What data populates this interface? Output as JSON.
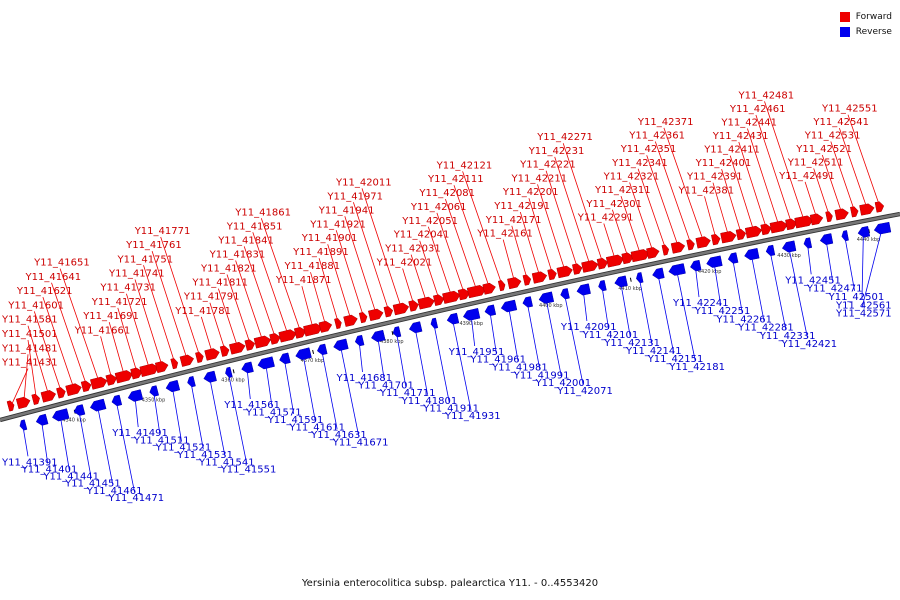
{
  "colors": {
    "forward": "#ee0000",
    "reverse": "#0000ee",
    "backbone": "#777777",
    "backbone_edge": "#333333"
  },
  "legend": [
    {
      "key": "forward",
      "label": "Forward"
    },
    {
      "key": "reverse",
      "label": "Reverse"
    }
  ],
  "caption": "Yersinia enterocolitica subsp. palearctica Y11. - 0..4553420",
  "region_kbp": [
    4335,
    4447
  ],
  "ticks": [
    "4340 kbp",
    "4350 kbp",
    "4360 kbp",
    "4370 kbp",
    "4380 kbp",
    "4390 kbp",
    "4400 kbp",
    "4410 kbp",
    "4420 kbp",
    "4430 kbp",
    "4440 kbp"
  ],
  "genes": [
    {
      "id": "Y11_41391",
      "strand": "-"
    },
    {
      "id": "Y11_41401",
      "strand": "-"
    },
    {
      "id": "Y11_41431",
      "strand": "+"
    },
    {
      "id": "Y11_41441",
      "strand": "-"
    },
    {
      "id": "Y11_41451",
      "strand": "-"
    },
    {
      "id": "Y11_41461",
      "strand": "-"
    },
    {
      "id": "Y11_41471",
      "strand": "-"
    },
    {
      "id": "Y11_41481",
      "strand": "+"
    },
    {
      "id": "Y11_41491",
      "strand": "-"
    },
    {
      "id": "Y11_41501",
      "strand": "+"
    },
    {
      "id": "Y11_41511",
      "strand": "-"
    },
    {
      "id": "Y11_41521",
      "strand": "-"
    },
    {
      "id": "Y11_41531",
      "strand": "-"
    },
    {
      "id": "Y11_41541",
      "strand": "-"
    },
    {
      "id": "Y11_41551",
      "strand": "-"
    },
    {
      "id": "Y11_41561",
      "strand": "-"
    },
    {
      "id": "Y11_41571",
      "strand": "-"
    },
    {
      "id": "Y11_41581",
      "strand": "+"
    },
    {
      "id": "Y11_41591",
      "strand": "-"
    },
    {
      "id": "Y11_41601",
      "strand": "+"
    },
    {
      "id": "Y11_41611",
      "strand": "-"
    },
    {
      "id": "Y11_41621",
      "strand": "+"
    },
    {
      "id": "Y11_41631",
      "strand": "-"
    },
    {
      "id": "Y11_41641",
      "strand": "+"
    },
    {
      "id": "Y11_41651",
      "strand": "+"
    },
    {
      "id": "Y11_41661",
      "strand": "+"
    },
    {
      "id": "Y11_41671",
      "strand": "-"
    },
    {
      "id": "Y11_41681",
      "strand": "-"
    },
    {
      "id": "Y11_41691",
      "strand": "+"
    },
    {
      "id": "Y11_41701",
      "strand": "-"
    },
    {
      "id": "Y11_41711",
      "strand": "-"
    },
    {
      "id": "Y11_41721",
      "strand": "+"
    },
    {
      "id": "Y11_41731",
      "strand": "+"
    },
    {
      "id": "Y11_41741",
      "strand": "+"
    },
    {
      "id": "Y11_41751",
      "strand": "+"
    },
    {
      "id": "Y11_41761",
      "strand": "+"
    },
    {
      "id": "Y11_41771",
      "strand": "+"
    },
    {
      "id": "Y11_41781",
      "strand": "+"
    },
    {
      "id": "Y11_41791",
      "strand": "+"
    },
    {
      "id": "Y11_41801",
      "strand": "-"
    },
    {
      "id": "Y11_41811",
      "strand": "+"
    },
    {
      "id": "Y11_41821",
      "strand": "+"
    },
    {
      "id": "Y11_41831",
      "strand": "+"
    },
    {
      "id": "Y11_41841",
      "strand": "+"
    },
    {
      "id": "Y11_41851",
      "strand": "+"
    },
    {
      "id": "Y11_41861",
      "strand": "+"
    },
    {
      "id": "Y11_41871",
      "strand": "+"
    },
    {
      "id": "Y11_41881",
      "strand": "+"
    },
    {
      "id": "Y11_41891",
      "strand": "+"
    },
    {
      "id": "Y11_41901",
      "strand": "+"
    },
    {
      "id": "Y11_41911",
      "strand": "-"
    },
    {
      "id": "Y11_41921",
      "strand": "+"
    },
    {
      "id": "Y11_41931",
      "strand": "-"
    },
    {
      "id": "Y11_41941",
      "strand": "+"
    },
    {
      "id": "Y11_41951",
      "strand": "-"
    },
    {
      "id": "Y11_41961",
      "strand": "-"
    },
    {
      "id": "Y11_41971",
      "strand": "+"
    },
    {
      "id": "Y11_41981",
      "strand": "-"
    },
    {
      "id": "Y11_41991",
      "strand": "-"
    },
    {
      "id": "Y11_42001",
      "strand": "-"
    },
    {
      "id": "Y11_42011",
      "strand": "+"
    },
    {
      "id": "Y11_42021",
      "strand": "+"
    },
    {
      "id": "Y11_42031",
      "strand": "+"
    },
    {
      "id": "Y11_42041",
      "strand": "+"
    },
    {
      "id": "Y11_42051",
      "strand": "+"
    },
    {
      "id": "Y11_42061",
      "strand": "+"
    },
    {
      "id": "Y11_42071",
      "strand": "-"
    },
    {
      "id": "Y11_42081",
      "strand": "+"
    },
    {
      "id": "Y11_42091",
      "strand": "-"
    },
    {
      "id": "Y11_42101",
      "strand": "-"
    },
    {
      "id": "Y11_42111",
      "strand": "+"
    },
    {
      "id": "Y11_42121",
      "strand": "+"
    },
    {
      "id": "Y11_42131",
      "strand": "-"
    },
    {
      "id": "Y11_42141",
      "strand": "-"
    },
    {
      "id": "Y11_42151",
      "strand": "-"
    },
    {
      "id": "Y11_42161",
      "strand": "+"
    },
    {
      "id": "Y11_42171",
      "strand": "+"
    },
    {
      "id": "Y11_42181",
      "strand": "-"
    },
    {
      "id": "Y11_42191",
      "strand": "+"
    },
    {
      "id": "Y11_42201",
      "strand": "+"
    },
    {
      "id": "Y11_42211",
      "strand": "+"
    },
    {
      "id": "Y11_42221",
      "strand": "+"
    },
    {
      "id": "Y11_42231",
      "strand": "+"
    },
    {
      "id": "Y11_42241",
      "strand": "-"
    },
    {
      "id": "Y11_42251",
      "strand": "-"
    },
    {
      "id": "Y11_42261",
      "strand": "-"
    },
    {
      "id": "Y11_42271",
      "strand": "+"
    },
    {
      "id": "Y11_42281",
      "strand": "-"
    },
    {
      "id": "Y11_42291",
      "strand": "+"
    },
    {
      "id": "Y11_42301",
      "strand": "+"
    },
    {
      "id": "Y11_42311",
      "strand": "+"
    },
    {
      "id": "Y11_42321",
      "strand": "+"
    },
    {
      "id": "Y11_42331",
      "strand": "-"
    },
    {
      "id": "Y11_42341",
      "strand": "+"
    },
    {
      "id": "Y11_42351",
      "strand": "+"
    },
    {
      "id": "Y11_42361",
      "strand": "+"
    },
    {
      "id": "Y11_42371",
      "strand": "+"
    },
    {
      "id": "Y11_42381",
      "strand": "+"
    },
    {
      "id": "Y11_42391",
      "strand": "+"
    },
    {
      "id": "Y11_42401",
      "strand": "+"
    },
    {
      "id": "Y11_42411",
      "strand": "+"
    },
    {
      "id": "Y11_42421",
      "strand": "-"
    },
    {
      "id": "Y11_42431",
      "strand": "+"
    },
    {
      "id": "Y11_42441",
      "strand": "+"
    },
    {
      "id": "Y11_42451",
      "strand": "-"
    },
    {
      "id": "Y11_42461",
      "strand": "+"
    },
    {
      "id": "Y11_42471",
      "strand": "-"
    },
    {
      "id": "Y11_42481",
      "strand": "+"
    },
    {
      "id": "Y11_42491",
      "strand": "+"
    },
    {
      "id": "Y11_42501",
      "strand": "-"
    },
    {
      "id": "Y11_42511",
      "strand": "+"
    },
    {
      "id": "Y11_42521",
      "strand": "+"
    },
    {
      "id": "Y11_42531",
      "strand": "+"
    },
    {
      "id": "Y11_42541",
      "strand": "+"
    },
    {
      "id": "Y11_42551",
      "strand": "+"
    },
    {
      "id": "Y11_42561",
      "strand": "-"
    },
    {
      "id": "Y11_42571",
      "strand": "-"
    }
  ]
}
